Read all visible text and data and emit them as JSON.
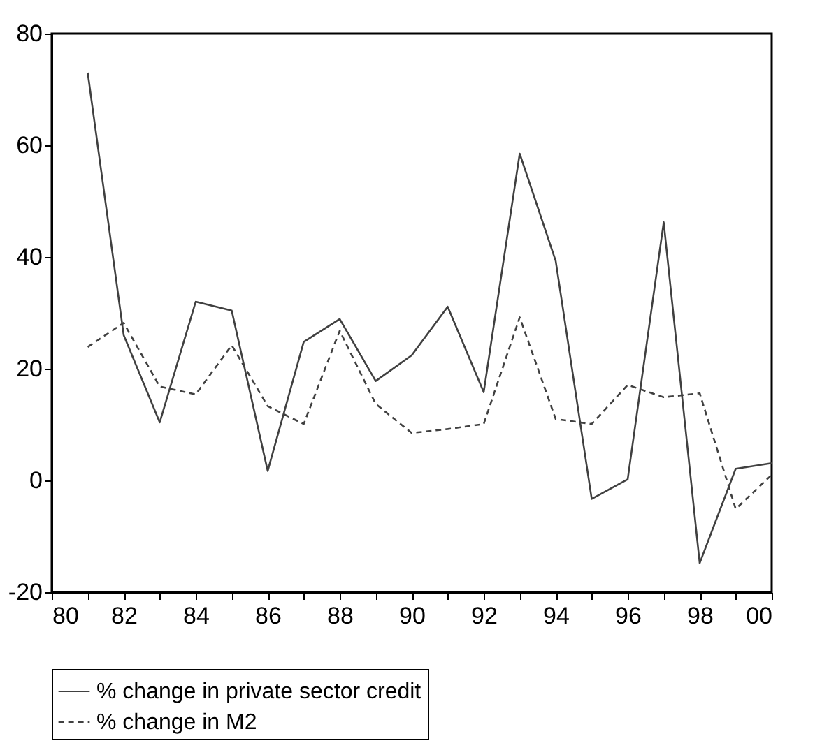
{
  "chart_data": {
    "type": "line",
    "x": [
      1981,
      1982,
      1983,
      1984,
      1985,
      1986,
      1987,
      1988,
      1989,
      1990,
      1991,
      1992,
      1993,
      1994,
      1995,
      1996,
      1997,
      1998,
      1999,
      2000
    ],
    "series": [
      {
        "name": "% change in private sector credit",
        "color": "#404040",
        "line_style": "solid",
        "values": [
          73,
          26,
          10.4,
          32,
          30.4,
          1.7,
          24.8,
          28.9,
          17.8,
          22.4,
          31.1,
          15.8,
          58.5,
          39.3,
          -3.3,
          0.2,
          46.2,
          -14.8,
          2.1,
          3.1
        ]
      },
      {
        "name": "% change in M2",
        "color": "#404040",
        "line_style": "dashed",
        "values": [
          23.9,
          28.2,
          16.8,
          15.4,
          24.2,
          13.3,
          10.1,
          26.8,
          13.7,
          8.5,
          9.2,
          10.1,
          29.2,
          11,
          10.1,
          17.1,
          14.9,
          15.6,
          -5.1,
          1
        ]
      }
    ],
    "xlim": [
      1980,
      2000
    ],
    "xticks": [
      {
        "value": 1980,
        "label": "80"
      },
      {
        "value": 1981,
        "label": null
      },
      {
        "value": 1982,
        "label": "82"
      },
      {
        "value": 1983,
        "label": null
      },
      {
        "value": 1984,
        "label": "84"
      },
      {
        "value": 1985,
        "label": null
      },
      {
        "value": 1986,
        "label": "86"
      },
      {
        "value": 1987,
        "label": null
      },
      {
        "value": 1988,
        "label": "88"
      },
      {
        "value": 1989,
        "label": null
      },
      {
        "value": 1990,
        "label": "90"
      },
      {
        "value": 1991,
        "label": null
      },
      {
        "value": 1992,
        "label": "92"
      },
      {
        "value": 1993,
        "label": null
      },
      {
        "value": 1994,
        "label": "94"
      },
      {
        "value": 1995,
        "label": null
      },
      {
        "value": 1996,
        "label": "96"
      },
      {
        "value": 1997,
        "label": null
      },
      {
        "value": 1998,
        "label": "98"
      },
      {
        "value": 1999,
        "label": null
      },
      {
        "value": 2000,
        "label": "00"
      }
    ],
    "ylim": [
      -20,
      80
    ],
    "yticks": [
      -20,
      0,
      20,
      40,
      60,
      80
    ],
    "grid": false,
    "legend": "bottom",
    "marker": "none"
  }
}
